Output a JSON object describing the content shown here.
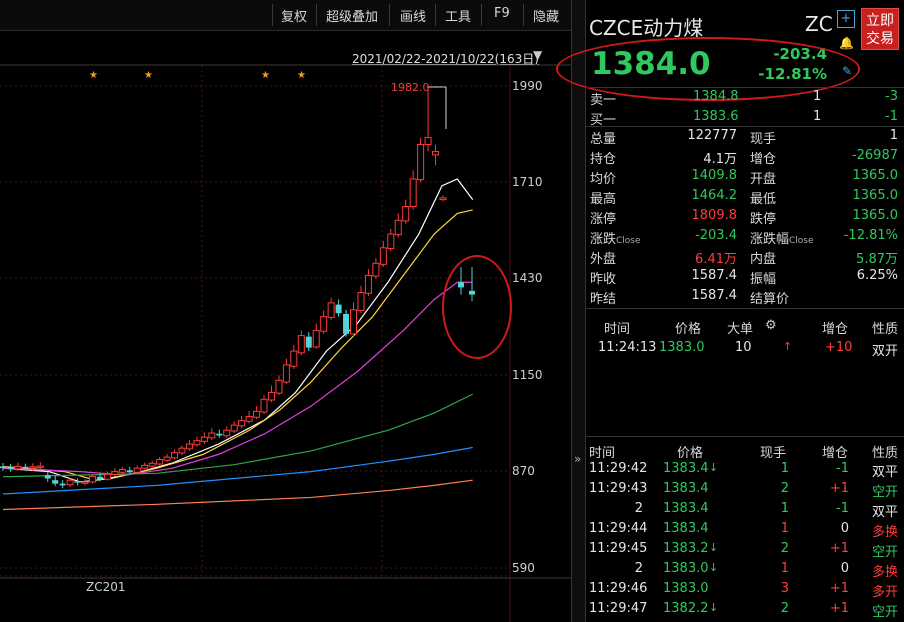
{
  "toolbar": {
    "buttons": [
      "复权",
      "超级叠加",
      "画线",
      "工具",
      "F9",
      "隐藏"
    ],
    "date_range": "2021/02/22-2021/10/22(163日)"
  },
  "chart": {
    "y_ticks": [
      "1990",
      "1710",
      "1430",
      "1150",
      "870",
      "590"
    ],
    "high_marker": "1982.0",
    "contract_label": "ZC201",
    "star_glyph": "★"
  },
  "header": {
    "title": "CZCE动力煤",
    "code": "ZC",
    "trade_button": [
      "立即",
      "交易"
    ],
    "price": "1384.0",
    "change": "-203.4",
    "change_pct": "-12.81%"
  },
  "quotes": [
    {
      "l1": "卖一",
      "v1": "1384.8",
      "l2": "",
      "v2": "1",
      "v3": "-3"
    },
    {
      "l1": "买一",
      "v1": "1383.6",
      "l2": "",
      "v2": "1",
      "v3": "-1"
    }
  ],
  "stats": [
    {
      "l1": "总量",
      "v1": "122777",
      "l2": "现手",
      "v2": "1"
    },
    {
      "l1": "持仓",
      "v1": "4.1万",
      "l2": "增仓",
      "v2": "-26987"
    },
    {
      "l1": "均价",
      "v1": "1409.8",
      "l2": "开盘",
      "v2": "1365.0"
    },
    {
      "l1": "最高",
      "v1": "1464.2",
      "l2": "最低",
      "v2": "1365.0"
    },
    {
      "l1": "涨停",
      "v1": "1809.8",
      "l2": "跌停",
      "v2": "1365.0"
    },
    {
      "l1": "涨跌",
      "s1": "Close",
      "v1": "-203.4",
      "l2": "涨跌幅",
      "s2": "Close",
      "v2": "-12.81%"
    },
    {
      "l1": "外盘",
      "v1": "6.41万",
      "l2": "内盘",
      "v2": "5.87万"
    },
    {
      "l1": "昨收",
      "v1": "1587.4",
      "l2": "振幅",
      "v2": "6.25%"
    },
    {
      "l1": "昨结",
      "v1": "1587.4",
      "l2": "结算价",
      "v2": ""
    }
  ],
  "big_orders": {
    "headers": [
      "时间",
      "价格",
      "大单",
      "增仓",
      "性质"
    ],
    "rows": [
      {
        "time": "11:24:13",
        "price": "1383.0",
        "qty": "10",
        "arrow": "↑",
        "change": "+10",
        "type": "双开"
      }
    ]
  },
  "ticks": {
    "headers": [
      "时间",
      "价格",
      "现手",
      "增仓",
      "性质"
    ],
    "rows": [
      {
        "time": "11:29:42",
        "price": "1383.4",
        "arrow": "↓",
        "qty": "1",
        "change": "-1",
        "type": "双平"
      },
      {
        "time": "11:29:43",
        "price": "1383.4",
        "arrow": "",
        "qty": "2",
        "change": "+1",
        "type": "空开"
      },
      {
        "time": "2",
        "price": "1383.4",
        "arrow": "",
        "qty": "1",
        "change": "-1",
        "type": "双平"
      },
      {
        "time": "11:29:44",
        "price": "1383.4",
        "arrow": "",
        "qty": "1",
        "change": "0",
        "type": "多换"
      },
      {
        "time": "11:29:45",
        "price": "1383.2",
        "arrow": "↓",
        "qty": "2",
        "change": "+1",
        "type": "空开"
      },
      {
        "time": "2",
        "price": "1383.0",
        "arrow": "↓",
        "qty": "1",
        "change": "0",
        "type": "多换"
      },
      {
        "time": "11:29:46",
        "price": "1383.0",
        "arrow": "",
        "qty": "3",
        "change": "+1",
        "type": "多开"
      },
      {
        "time": "11:29:47",
        "price": "1382.2",
        "arrow": "↓",
        "qty": "2",
        "change": "+1",
        "type": "空开"
      }
    ]
  },
  "colors": {
    "up": "#ff3b3b",
    "down": "#2fc95f",
    "annotation": "#d0191b",
    "ma5": "#ffffff",
    "ma10": "#ffd43b",
    "ma20": "#e040e0",
    "ma40": "#2ea44f",
    "ma60": "#1e90ff",
    "ma120": "#ff7f50"
  }
}
